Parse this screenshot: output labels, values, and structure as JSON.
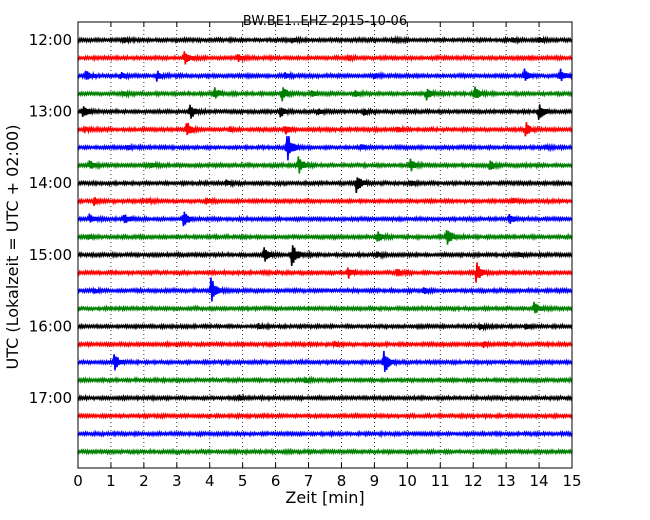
{
  "chart_data": {
    "type": "line",
    "title": "BW.BE1..EHZ 2015-10-06",
    "xlabel": "Zeit  [min]",
    "ylabel": "UTC (Lokalzeit = UTC + 02:00)",
    "xlim": [
      0,
      15
    ],
    "x_ticks": [
      0,
      1,
      2,
      3,
      4,
      5,
      6,
      7,
      8,
      9,
      10,
      11,
      12,
      13,
      14,
      15
    ],
    "x_tick_labels": [
      "0",
      "1",
      "2",
      "3",
      "4",
      "5",
      "6",
      "7",
      "8",
      "9",
      "10",
      "11",
      "12",
      "13",
      "14",
      "15"
    ],
    "y_tick_labels": [
      "12:00",
      "13:00",
      "14:00",
      "15:00",
      "16:00",
      "17:00"
    ],
    "grid": "x-dotted",
    "series_color_cycle": [
      "#000000",
      "#ff0000",
      "#0000ff",
      "#008000"
    ],
    "traces": [
      {
        "time": "12:00",
        "events": [
          {
            "t": 1.4,
            "a": 0.25
          },
          {
            "t": 6.5,
            "a": 0.3
          },
          {
            "t": 9.6,
            "a": 0.25
          },
          {
            "t": 13.2,
            "a": 0.2
          },
          {
            "t": 14.0,
            "a": 0.3
          }
        ]
      },
      {
        "time": "12:15",
        "events": [
          {
            "t": 3.25,
            "a": 0.9
          },
          {
            "t": 4.85,
            "a": 0.4
          },
          {
            "t": 8.2,
            "a": 0.2
          },
          {
            "t": 13.7,
            "a": 0.2
          }
        ]
      },
      {
        "time": "12:30",
        "events": [
          {
            "t": 0.25,
            "a": 0.5
          },
          {
            "t": 1.3,
            "a": 0.35
          },
          {
            "t": 2.4,
            "a": 0.3
          },
          {
            "t": 2.4,
            "a": 0.3
          },
          {
            "t": 6.3,
            "a": 0.3
          },
          {
            "t": 9.0,
            "a": 0.2
          },
          {
            "t": 13.55,
            "a": 0.8
          },
          {
            "t": 14.65,
            "a": 0.8
          }
        ]
      },
      {
        "time": "12:45",
        "events": [
          {
            "t": 1.4,
            "a": 0.25
          },
          {
            "t": 4.15,
            "a": 0.7
          },
          {
            "t": 6.2,
            "a": 0.9
          },
          {
            "t": 7.1,
            "a": 0.3
          },
          {
            "t": 8.4,
            "a": 0.4
          },
          {
            "t": 10.6,
            "a": 0.8
          },
          {
            "t": 12.05,
            "a": 0.9
          }
        ]
      },
      {
        "time": "13:00",
        "events": [
          {
            "t": 0.15,
            "a": 0.8
          },
          {
            "t": 3.4,
            "a": 1.0
          },
          {
            "t": 6.15,
            "a": 0.6
          },
          {
            "t": 7.3,
            "a": 0.4
          },
          {
            "t": 8.7,
            "a": 0.3
          },
          {
            "t": 14.0,
            "a": 1.0
          }
        ]
      },
      {
        "time": "13:15",
        "events": [
          {
            "t": 0.2,
            "a": 0.3
          },
          {
            "t": 3.3,
            "a": 1.0
          },
          {
            "t": 4.6,
            "a": 0.2
          },
          {
            "t": 6.3,
            "a": 0.5
          },
          {
            "t": 9.7,
            "a": 0.3
          },
          {
            "t": 13.6,
            "a": 0.8
          }
        ]
      },
      {
        "time": "13:30",
        "events": [
          {
            "t": 1.5,
            "a": 0.25
          },
          {
            "t": 6.35,
            "a": 1.9
          },
          {
            "t": 8.6,
            "a": 0.3
          },
          {
            "t": 14.2,
            "a": 0.25
          }
        ]
      },
      {
        "time": "13:45",
        "events": [
          {
            "t": 0.35,
            "a": 0.6
          },
          {
            "t": 2.2,
            "a": 0.3
          },
          {
            "t": 6.7,
            "a": 1.2
          },
          {
            "t": 10.1,
            "a": 0.7
          },
          {
            "t": 12.5,
            "a": 0.6
          }
        ]
      },
      {
        "time": "14:00",
        "events": [
          {
            "t": 4.5,
            "a": 0.3
          },
          {
            "t": 8.45,
            "a": 1.2
          },
          {
            "t": 10.1,
            "a": 0.25
          }
        ]
      },
      {
        "time": "14:15",
        "events": [
          {
            "t": 0.5,
            "a": 0.4
          },
          {
            "t": 2.1,
            "a": 0.25
          },
          {
            "t": 3.9,
            "a": 0.3
          },
          {
            "t": 13.2,
            "a": 0.25
          }
        ]
      },
      {
        "time": "14:30",
        "events": [
          {
            "t": 0.35,
            "a": 0.6
          },
          {
            "t": 1.4,
            "a": 0.6
          },
          {
            "t": 3.2,
            "a": 1.2
          },
          {
            "t": 13.1,
            "a": 0.6
          }
        ]
      },
      {
        "time": "14:45",
        "events": [
          {
            "t": 0.3,
            "a": 0.25
          },
          {
            "t": 9.1,
            "a": 0.8
          },
          {
            "t": 11.2,
            "a": 1.2
          }
        ]
      },
      {
        "time": "15:00",
        "events": [
          {
            "t": 5.65,
            "a": 0.9
          },
          {
            "t": 6.5,
            "a": 1.6
          },
          {
            "t": 9.1,
            "a": 0.3
          },
          {
            "t": 13.4,
            "a": 0.25
          }
        ]
      },
      {
        "time": "15:15",
        "events": [
          {
            "t": 8.2,
            "a": 0.7
          },
          {
            "t": 9.7,
            "a": 0.5
          },
          {
            "t": 12.1,
            "a": 1.3
          }
        ]
      },
      {
        "time": "15:30",
        "events": [
          {
            "t": 0.5,
            "a": 0.25
          },
          {
            "t": 4.05,
            "a": 1.8
          },
          {
            "t": 10.5,
            "a": 0.4
          }
        ]
      },
      {
        "time": "15:45",
        "events": [
          {
            "t": 13.85,
            "a": 0.7
          }
        ]
      },
      {
        "time": "16:00",
        "events": [
          {
            "t": 5.5,
            "a": 0.25
          },
          {
            "t": 12.2,
            "a": 0.3
          },
          {
            "t": 13.6,
            "a": 0.3
          }
        ]
      },
      {
        "time": "16:15",
        "events": [
          {
            "t": 7.8,
            "a": 0.25
          },
          {
            "t": 12.3,
            "a": 0.3
          }
        ]
      },
      {
        "time": "16:30",
        "events": [
          {
            "t": 1.1,
            "a": 1.1
          },
          {
            "t": 9.3,
            "a": 1.4
          }
        ]
      },
      {
        "time": "16:45",
        "events": [
          {
            "t": 6.9,
            "a": 0.25
          }
        ]
      },
      {
        "time": "17:00",
        "events": [
          {
            "t": 4.9,
            "a": 0.25
          }
        ]
      },
      {
        "time": "17:15",
        "events": []
      },
      {
        "time": "17:30",
        "events": []
      },
      {
        "time": "17:45",
        "events": []
      }
    ]
  }
}
